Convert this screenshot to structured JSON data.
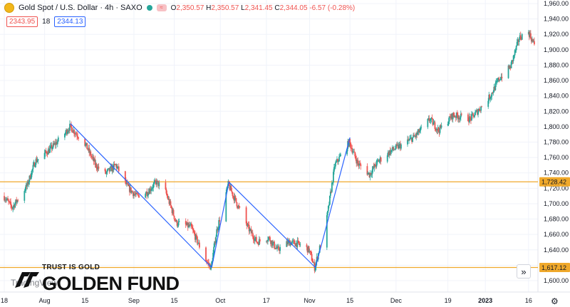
{
  "header": {
    "symbol_title": "Gold Spot / U.S. Dollar · 4h · SAXO",
    "ohlc": [
      {
        "k": "O",
        "v": "2,350.57"
      },
      {
        "k": "H",
        "v": "2,350.57"
      },
      {
        "k": "L",
        "v": "2,341.45"
      },
      {
        "k": "C",
        "v": "2,344.05"
      },
      {
        "k": "",
        "v": "-6.57 (-0.28%)"
      }
    ],
    "bid": "2343.95",
    "spread": "18",
    "ask": "2344.13"
  },
  "watermark": {
    "tagline": "TRUST IS GOLD",
    "brand": "GOLDEN FUND",
    "tv": "TradingView"
  },
  "colors": {
    "up": "#26a69a",
    "down": "#ef5350",
    "level_line": "#f0a92b",
    "pattern_line": "#2962ff",
    "grid": "#f0f3fa"
  },
  "chart_data": {
    "type": "candlestick",
    "symbol": "XAUUSD",
    "timeframe": "4h",
    "ylim": [
      1594,
      1970
    ],
    "y_ticks": [
      1600,
      1620,
      1640,
      1660,
      1680,
      1700,
      1720,
      1740,
      1760,
      1780,
      1800,
      1820,
      1840,
      1860,
      1880,
      1900,
      1920,
      1940,
      1960
    ],
    "x_range": [
      "2022-07-18",
      "2023-01-20"
    ],
    "x_ticks": [
      {
        "d": "2022-07-18",
        "label": "18"
      },
      {
        "d": "2022-08-01",
        "label": "Aug"
      },
      {
        "d": "2022-08-15",
        "label": "15"
      },
      {
        "d": "2022-09-01",
        "label": "Sep"
      },
      {
        "d": "2022-09-15",
        "label": "15"
      },
      {
        "d": "2022-10-01",
        "label": "Oct"
      },
      {
        "d": "2022-10-17",
        "label": "17"
      },
      {
        "d": "2022-11-01",
        "label": "Nov"
      },
      {
        "d": "2022-11-15",
        "label": "15"
      },
      {
        "d": "2022-12-01",
        "label": "Dec"
      },
      {
        "d": "2022-12-19",
        "label": "19"
      },
      {
        "d": "2023-01-01",
        "label": "2023"
      },
      {
        "d": "2023-01-16",
        "label": "16"
      }
    ],
    "horizontal_levels": [
      {
        "value": 1728.42,
        "label": "1,728.42"
      },
      {
        "value": 1617.12,
        "label": "1,617.12"
      }
    ],
    "pattern_lines": [
      {
        "from": {
          "d": "2022-08-10",
          "p": 1804
        },
        "to": {
          "d": "2022-09-28",
          "p": 1617
        }
      },
      {
        "from": {
          "d": "2022-09-28",
          "p": 1617
        },
        "to": {
          "d": "2022-10-04",
          "p": 1728
        }
      },
      {
        "from": {
          "d": "2022-10-04",
          "p": 1728
        },
        "to": {
          "d": "2022-11-03",
          "p": 1617
        }
      },
      {
        "from": {
          "d": "2022-11-03",
          "p": 1617
        },
        "to": {
          "d": "2022-11-15",
          "p": 1786
        }
      }
    ],
    "price_path": [
      {
        "d": "2022-07-18",
        "p": 1710
      },
      {
        "d": "2022-07-21",
        "p": 1695
      },
      {
        "d": "2022-07-26",
        "p": 1722
      },
      {
        "d": "2022-07-29",
        "p": 1755
      },
      {
        "d": "2022-08-03",
        "p": 1770
      },
      {
        "d": "2022-08-08",
        "p": 1790
      },
      {
        "d": "2022-08-10",
        "p": 1800
      },
      {
        "d": "2022-08-15",
        "p": 1780
      },
      {
        "d": "2022-08-19",
        "p": 1750
      },
      {
        "d": "2022-08-22",
        "p": 1738
      },
      {
        "d": "2022-08-26",
        "p": 1750
      },
      {
        "d": "2022-08-30",
        "p": 1722
      },
      {
        "d": "2022-09-02",
        "p": 1710
      },
      {
        "d": "2022-09-06",
        "p": 1715
      },
      {
        "d": "2022-09-09",
        "p": 1728
      },
      {
        "d": "2022-09-12",
        "p": 1718
      },
      {
        "d": "2022-09-16",
        "p": 1675
      },
      {
        "d": "2022-09-21",
        "p": 1670
      },
      {
        "d": "2022-09-26",
        "p": 1628
      },
      {
        "d": "2022-09-28",
        "p": 1617
      },
      {
        "d": "2022-09-30",
        "p": 1665
      },
      {
        "d": "2022-10-04",
        "p": 1725
      },
      {
        "d": "2022-10-07",
        "p": 1700
      },
      {
        "d": "2022-10-11",
        "p": 1668
      },
      {
        "d": "2022-10-14",
        "p": 1650
      },
      {
        "d": "2022-10-18",
        "p": 1656
      },
      {
        "d": "2022-10-21",
        "p": 1640
      },
      {
        "d": "2022-10-25",
        "p": 1650
      },
      {
        "d": "2022-10-28",
        "p": 1648
      },
      {
        "d": "2022-11-01",
        "p": 1640
      },
      {
        "d": "2022-11-03",
        "p": 1617
      },
      {
        "d": "2022-11-07",
        "p": 1675
      },
      {
        "d": "2022-11-10",
        "p": 1750
      },
      {
        "d": "2022-11-15",
        "p": 1780
      },
      {
        "d": "2022-11-18",
        "p": 1752
      },
      {
        "d": "2022-11-22",
        "p": 1738
      },
      {
        "d": "2022-11-25",
        "p": 1755
      },
      {
        "d": "2022-11-30",
        "p": 1770
      },
      {
        "d": "2022-12-05",
        "p": 1780
      },
      {
        "d": "2022-12-08",
        "p": 1788
      },
      {
        "d": "2022-12-13",
        "p": 1810
      },
      {
        "d": "2022-12-16",
        "p": 1795
      },
      {
        "d": "2022-12-21",
        "p": 1815
      },
      {
        "d": "2022-12-27",
        "p": 1810
      },
      {
        "d": "2022-12-30",
        "p": 1822
      },
      {
        "d": "2023-01-03",
        "p": 1840
      },
      {
        "d": "2023-01-06",
        "p": 1862
      },
      {
        "d": "2023-01-10",
        "p": 1878
      },
      {
        "d": "2023-01-13",
        "p": 1915
      },
      {
        "d": "2023-01-16",
        "p": 1925
      },
      {
        "d": "2023-01-18",
        "p": 1908
      }
    ],
    "candles_per_day": 4,
    "grid": true
  }
}
